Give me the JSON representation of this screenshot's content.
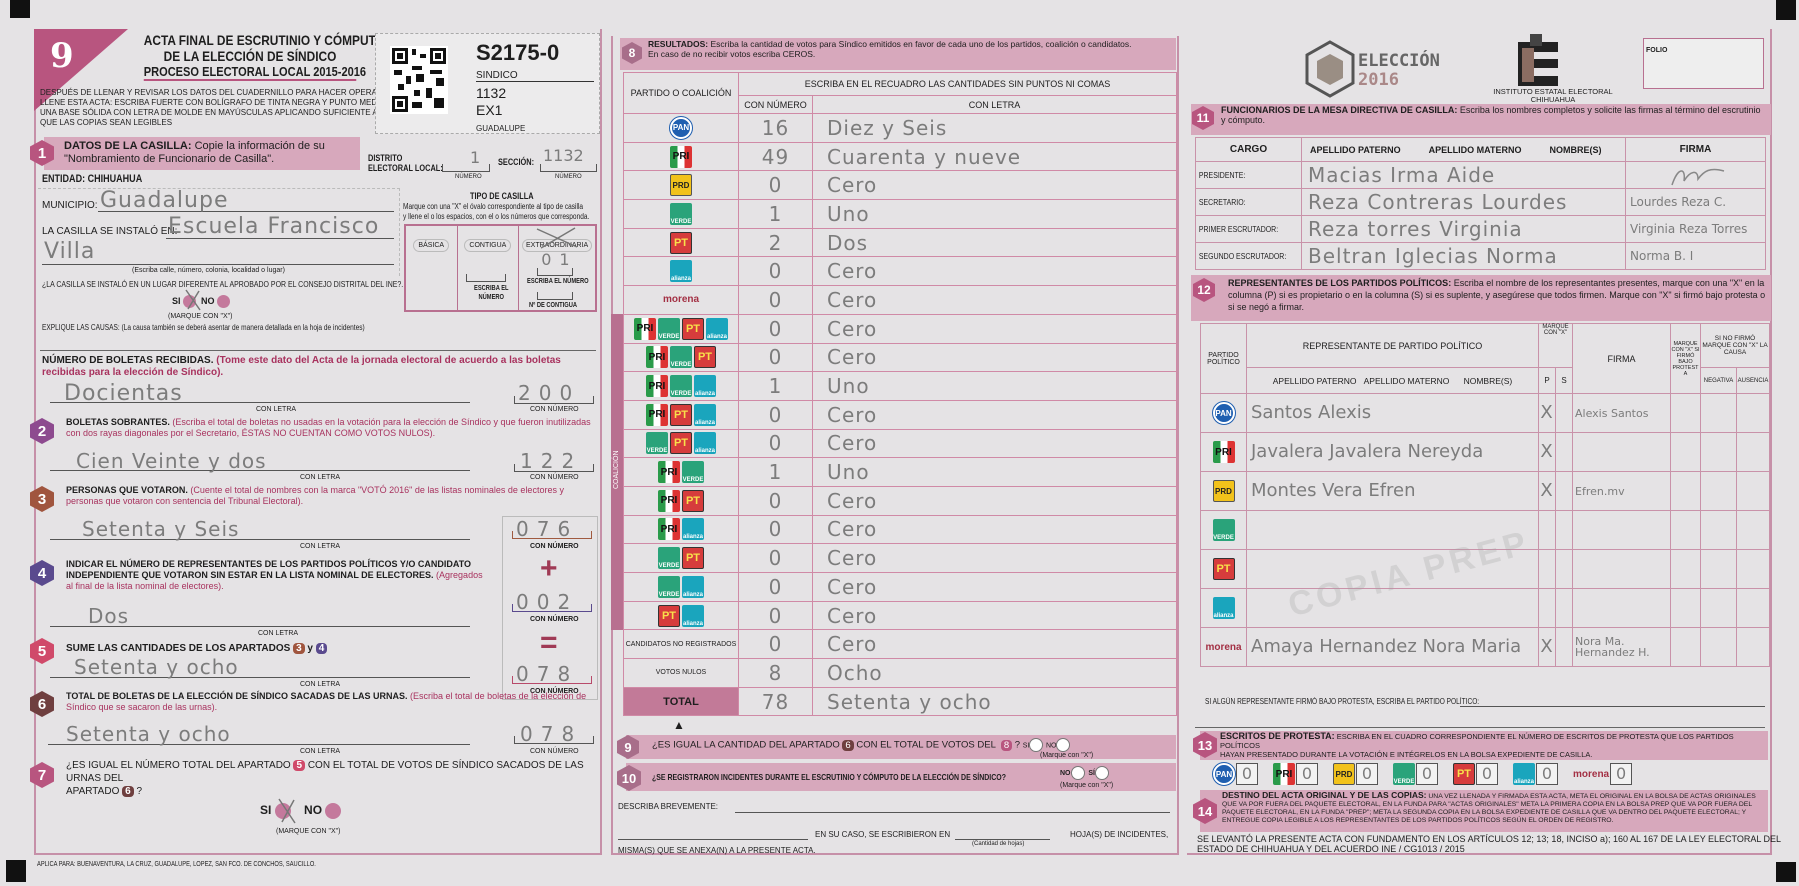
{
  "header": {
    "number": "9",
    "title1": "ACTA FINAL DE ESCRUTINIO Y CÓMPUTO",
    "title2": "DE LA ELECCIÓN DE SÍNDICO",
    "title3": "PROCESO ELECTORAL LOCAL 2015-2016",
    "instructions": [
      "DESPUÉS DE LLENAR Y REVISAR LOS DATOS DEL CUADERNILLO PARA HACER OPERACIONES,",
      "LLENE ESTA ACTA: ESCRIBA FUERTE CON BOLÍGRAFO DE TINTA NEGRA Y PUNTO MEDIANO SOBRE",
      "UNA BASE SÓLIDA CON LETRA DE MOLDE EN MAYÚSCULAS APLICANDO SUFICIENTE APOYO PARA",
      "QUE LAS COPIAS SEAN LEGIBLES"
    ]
  },
  "id_box": {
    "code": "S2175-0",
    "election": "SINDICO",
    "section": "1132",
    "casilla": "EX1",
    "municipio": "GUADALUPE"
  },
  "s1": {
    "num": "1",
    "title": "DATOS DE LA CASILLA:",
    "text1": "Copie la información de su",
    "text2": "\"Nombramiento de Funcionario de Casilla\".",
    "distrito_label1": "DISTRITO",
    "distrito_label2": "ELECTORAL LOCAL:",
    "distrito_value": "1",
    "seccion_label": "SECCIÓN:",
    "seccion_value": "1132",
    "numero": "NÚMERO",
    "entidad": "ENTIDAD:  CHIHUAHUA",
    "municipio_label": "MUNICIPIO:",
    "municipio_value": "Guadalupe",
    "instalo_label": "LA CASILLA SE INSTALÓ EN:",
    "instalo_value1": "Escuela Francisco",
    "instalo_value2": "Villa",
    "address_hint": "(Escriba calle, número, colonia, localidad o lugar)",
    "diferente_q": "¿LA CASILLA SE INSTALÓ EN UN LUGAR DIFERENTE AL APROBADO POR EL CONSEJO DISTRITAL DEL INE?.",
    "si": "SI",
    "no": "NO",
    "marque": "(MARQUE CON \"X\")",
    "selected": "SI",
    "explique": "EXPLIQUE LAS CAUSAS:",
    "explique_hint": "(La causa también se deberá asentar de manera detallada en la hoja de incidentes)",
    "tipo_title": "TIPO DE CASILLA",
    "tipo_desc1": "Marque con una \"X\" el óvalo correspondiente al tipo de casilla",
    "tipo_desc2": "y llene el o los espacios, con el o los números que corresponda.",
    "tipos": [
      "BÁSICA",
      "CONTIGUA",
      "EXTRAORDINARIA"
    ],
    "tipo_selected": "EXTRAORDINARIA",
    "escriba_numero": "ESCRIBA EL NÚMERO",
    "escriba_el": "ESCRIBA EL",
    "numero2": "NÚMERO",
    "extra_value": "01",
    "contigua_label": "Nº DE CONTIGUA"
  },
  "con_letra": "CON LETRA",
  "con_numero": "CON NÚMERO",
  "boletas": {
    "title": "NÚMERO DE BOLETAS RECIBIDAS.",
    "hint1": "(Tome este dato del Acta de la jornada electoral de acuerdo a las boletas recibidas para la",
    "hint2": "elección de Síndico).",
    "letra": "Docientas",
    "numero": "200"
  },
  "s2": {
    "num": "2",
    "title": "BOLETAS SOBRANTES.",
    "hint1": "(Escriba el total de boletas no usadas en la votación para la elección de Síndico y que fueron inutilizadas",
    "hint2": "con dos rayas diagonales por el Secretario, ÉSTAS NO CUENTAN COMO VOTOS NULOS).",
    "letra": "Cien Veinte y dos",
    "numero": "122"
  },
  "s3": {
    "num": "3",
    "title": "PERSONAS QUE VOTARON.",
    "hint1": "(Cuente el total de nombres con la marca \"VOTÓ 2016\" de las listas nominales de electores y",
    "hint2": "personas que votaron con sentencia del Tribunal Electoral).",
    "letra": "Setenta y Seis",
    "numero": "076"
  },
  "s4": {
    "num": "4",
    "title1": "INDICAR EL NÚMERO DE REPRESENTANTES DE LOS PARTIDOS POLÍTICOS Y/O CANDIDATO",
    "title2": "INDEPENDIENTE QUE VOTARON SIN ESTAR EN LA LISTA NOMINAL DE ELECTORES.",
    "hint1": "(Agregados al",
    "hint2": "final de la lista nominal de electores).",
    "letra": "Dos",
    "numero": "002",
    "plus": "+",
    "equals": "="
  },
  "s5": {
    "num": "5",
    "title": "SUME LAS CANTIDADES DE LOS APARTADOS",
    "ref_a": "3",
    "y": "y",
    "ref_b": "4",
    "letra": "Setenta y ocho",
    "numero": "078"
  },
  "s6": {
    "num": "6",
    "title": "TOTAL DE BOLETAS DE LA ELECCIÓN DE SÍNDICO SACADAS DE LAS URNAS.",
    "hint1": "(Escriba el total de boletas de la elección de",
    "hint2": "Síndico que se sacaron de las urnas).",
    "letra": "Setenta y ocho",
    "numero": "078"
  },
  "s7": {
    "num": "7",
    "text1a": "¿ES IGUAL EL NÚMERO TOTAL DEL APARTADO",
    "ref_a": "5",
    "text1b": "CON EL TOTAL DE VOTOS DE SÍNDICO SACADOS DE LAS URNAS DEL",
    "text2": "APARTADO",
    "ref_b": "6",
    "q": "?",
    "si": "SI",
    "no": "NO",
    "marque": "(MARQUE CON \"X\")",
    "selected": "SI"
  },
  "footer_left": "APLICA PARA:  BUENAVENTURA, LA CRUZ, GUADALUPE, LOPEZ, SAN FCO. DE CONCHOS, SAUCILLO.",
  "parties": {
    "pan": "PAN",
    "pri": "PRI",
    "prd": "PRD",
    "verde": "VERDE",
    "pt": "PT",
    "alianza": "alianza",
    "morena": "morena"
  },
  "s8": {
    "num": "8",
    "title": "RESULTADOS:",
    "text1": "Escriba la cantidad de votos para Síndico emitidos en favor de cada uno de los partidos, coalición o candidatos.",
    "text2": "En caso de no recibir votos escriba CEROS.",
    "col_party": "PARTIDO O COALICIÓN",
    "col_instr": "ESCRIBA EN EL RECUADRO LAS CANTIDADES SIN PUNTOS NI COMAS",
    "col_num": "CON NÚMERO",
    "col_letra": "CON LETRA",
    "coalicion": "COALICIÓN",
    "rows": [
      {
        "parties": [
          "pan"
        ],
        "numero": "16",
        "letra": "Diez y Seis"
      },
      {
        "parties": [
          "pri"
        ],
        "numero": "49",
        "letra": "Cuarenta y nueve"
      },
      {
        "parties": [
          "prd"
        ],
        "numero": "0",
        "letra": "Cero"
      },
      {
        "parties": [
          "verde"
        ],
        "numero": "1",
        "letra": "Uno"
      },
      {
        "parties": [
          "pt"
        ],
        "numero": "2",
        "letra": "Dos"
      },
      {
        "parties": [
          "alianza"
        ],
        "numero": "0",
        "letra": "Cero"
      },
      {
        "parties": [
          "morena"
        ],
        "numero": "0",
        "letra": "Cero"
      },
      {
        "parties": [
          "pri",
          "verde",
          "pt",
          "alianza"
        ],
        "numero": "0",
        "letra": "Cero",
        "coalition": true
      },
      {
        "parties": [
          "pri",
          "verde",
          "pt"
        ],
        "numero": "0",
        "letra": "Cero",
        "coalition": true
      },
      {
        "parties": [
          "pri",
          "verde",
          "alianza"
        ],
        "numero": "1",
        "letra": "Uno",
        "coalition": true
      },
      {
        "parties": [
          "pri",
          "pt",
          "alianza"
        ],
        "numero": "0",
        "letra": "Cero",
        "coalition": true
      },
      {
        "parties": [
          "verde",
          "pt",
          "alianza"
        ],
        "numero": "0",
        "letra": "Cero",
        "coalition": true
      },
      {
        "parties": [
          "pri",
          "verde"
        ],
        "numero": "1",
        "letra": "Uno",
        "coalition": true
      },
      {
        "parties": [
          "pri",
          "pt"
        ],
        "numero": "0",
        "letra": "Cero",
        "coalition": true
      },
      {
        "parties": [
          "pri",
          "alianza"
        ],
        "numero": "0",
        "letra": "Cero",
        "coalition": true
      },
      {
        "parties": [
          "verde",
          "pt"
        ],
        "numero": "0",
        "letra": "Cero",
        "coalition": true
      },
      {
        "parties": [
          "verde",
          "alianza"
        ],
        "numero": "0",
        "letra": "Cero",
        "coalition": true
      },
      {
        "parties": [
          "pt",
          "alianza"
        ],
        "numero": "0",
        "letra": "Cero",
        "coalition": true
      },
      {
        "label": "CANDIDATOS NO REGISTRADOS",
        "numero": "0",
        "letra": "Cero"
      },
      {
        "label": "VOTOS NULOS",
        "numero": "8",
        "letra": "Ocho"
      },
      {
        "label": "TOTAL",
        "numero": "78",
        "letra": "Setenta y ocho",
        "total": true
      }
    ]
  },
  "s9": {
    "num": "9",
    "text_a": "¿ES IGUAL LA CANTIDAD DEL APARTADO",
    "ref_a": "6",
    "text_b": "CON EL TOTAL DE VOTOS DEL",
    "ref_b": "8",
    "q": "?",
    "si": "SI",
    "no": "NO",
    "marque": "(Marque con \"X\")"
  },
  "s10": {
    "num": "10",
    "text": "¿SE REGISTRARON INCIDENTES DURANTE EL ESCRUTINIO Y CÓMPUTO DE LA ELECCIÓN DE SÍNDICO?",
    "no": "NO",
    "si": "SÍ",
    "marque": "(Marque con \"X\")",
    "describa": "DESCRIBA BREVEMENTE:",
    "en_su_caso": "EN SU CASO, SE ESCRIBIERON EN",
    "hojas": "HOJA(S) DE INCIDENTES,",
    "cantidad": "(Cantidad de hojas)",
    "misma": "MISMA(S) QUE SE ANEXA(N) A LA PRESENTE ACTA."
  },
  "logos": {
    "eleccion1": "ELECCIÓN",
    "eleccion2": "2016",
    "iee1": "INSTITUTO ESTATAL ELECTORAL",
    "iee2": "CHIHUAHUA",
    "folio": "FOLIO"
  },
  "s11": {
    "num": "11",
    "title": "FUNCIONARIOS DE LA MESA DIRECTIVA DE CASILLA:",
    "text1": "Escriba los nombres completos y solicite las firmas al término del escrutinio",
    "text2": "y cómputo.",
    "cols": [
      "CARGO",
      "APELLIDO PATERNO",
      "APELLIDO MATERNO",
      "NOMBRE(S)",
      "FIRMA"
    ],
    "rows": [
      {
        "cargo": "PRESIDENTE:",
        "nombre": "Macias Irma Aide",
        "firma": ""
      },
      {
        "cargo": "SECRETARIO:",
        "nombre": "Reza Contreras Lourdes",
        "firma": "Lourdes Reza C."
      },
      {
        "cargo": "PRIMER ESCRUTADOR:",
        "nombre": "Reza torres Virginia",
        "firma": "Virginia Reza Torres"
      },
      {
        "cargo": "SEGUNDO ESCRUTADOR:",
        "nombre": "Beltran Iglecias Norma",
        "firma": "Norma B. I"
      }
    ]
  },
  "s12": {
    "num": "12",
    "title": "REPRESENTANTES DE LOS PARTIDOS POLÍTICOS:",
    "text1": "Escriba el nombre de los representantes presentes, marque con una \"X\" en",
    "text2": "la columna (P) si es propietario o en la columna (S) si es suplente, y asegúrese que todos firmen. Marque con \"X\" si firmó bajo",
    "text3": "protesta o si se negó a firmar.",
    "col_partido": "PARTIDO POLÍTICO",
    "col_rep": "REPRESENTANTE DE PARTIDO POLÍTICO",
    "col_marque": "MARQUE CON \"X\"",
    "col_firma": "FIRMA",
    "col_protesta": "MARQUE CON \"X\" SI FIRMÓ BAJO PROTESTA",
    "col_nofirmo": "SI NO FIRMÓ MARQUE CON \"X\" LA CAUSA",
    "col_pat": "APELLIDO PATERNO",
    "col_mat": "APELLIDO MATERNO",
    "col_nom": "NOMBRE(S)",
    "col_p": "P",
    "col_s": "S",
    "col_neg": "NEGATIVA",
    "col_aus": "AUSENCIA",
    "rows": [
      {
        "party": "pan",
        "nombre": "Santos Alexis",
        "p": "X",
        "s": "",
        "firma": "Alexis Santos"
      },
      {
        "party": "pri",
        "nombre": "Javalera Javalera Nereyda",
        "p": "X",
        "s": "",
        "firma": ""
      },
      {
        "party": "prd",
        "nombre": "Montes Vera Efren",
        "p": "X",
        "s": "",
        "firma": "Efren.mv"
      },
      {
        "party": "verde",
        "nombre": "",
        "p": "",
        "s": "",
        "firma": ""
      },
      {
        "party": "pt",
        "nombre": "",
        "p": "",
        "s": "",
        "firma": ""
      },
      {
        "party": "alianza",
        "nombre": "",
        "p": "",
        "s": "",
        "firma": ""
      },
      {
        "party": "morena",
        "nombre": "Amaya Hernandez Nora Maria",
        "p": "X",
        "s": "",
        "firma": "Nora Ma. Hernandez H."
      }
    ],
    "protesta_q": "SI ALGÚN REPRESENTANTE FIRMÓ BAJO PROTESTA, ESCRIBA EL PARTIDO POLÍTICO:"
  },
  "s13": {
    "num": "13",
    "title": "ESCRITOS DE PROTESTA:",
    "text1": "ESCRIBA EN EL CUADRO CORRESPONDIENTE EL NÚMERO DE ESCRITOS DE PROTESTA QUE LOS PARTIDOS POLÍTICOS",
    "text2": "HAYAN PRESENTADO DURANTE LA VOTACIÓN E INTÉGRELOS EN LA BOLSA  EXPEDIENTE DE CASILLA.",
    "parties": [
      "pan",
      "pri",
      "prd",
      "verde",
      "pt",
      "alianza",
      "morena"
    ],
    "values": [
      "0",
      "0",
      "0",
      "0",
      "0",
      "0",
      "0"
    ]
  },
  "s14": {
    "num": "14",
    "title": "DESTINO DEL ACTA ORIGINAL Y DE LAS COPIAS:",
    "text1": "UNA VEZ LLENADA Y FIRMADA ESTA ACTA, META EL ORIGINAL EN LA BOLSA DE ACTAS ORIGINALES QUE VA",
    "text2": "POR FUERA DEL PAQUETE ELECTORAL, EN LA FUNDA PARA \"ACTAS ORIGINALES\" META LA PRIMERA COPIA EN LA BOLSA PREP QUE VA POR FUERA DEL PAQUETE ELECTORAL, EN LA",
    "text3": "FUNDA \"PREP\"; META LA SEGUNDA COPIA EN LA BOLSA EXPEDIENTE DE CASILLA QUE VA DENTRO DEL PAQUETE ELECTORAL; Y ENTREGUE COPIA LEGIBLE A LOS REPRESENTANTES",
    "text4": "DE LOS PARTIDOS POLÍTICOS SEGÚN EL ORDEN DE REGISTRO.",
    "legal1": "SE LEVANTÓ LA PRESENTE ACTA CON FUNDAMENTO EN LOS ARTÍCULOS 12; 13; 18, INCISO a); 160 AL 167 DE LA LEY  ELECTORAL DEL",
    "legal2": "ESTADO DE CHIHUAHUA Y DEL ACUERDO INE / CG1013 / 2015"
  },
  "watermark": "COPIA PREP",
  "colors": {
    "accent": "#b8557f",
    "band": "#d7a8bc",
    "border": "#c690a8",
    "handwriting": "#7c7c7c"
  }
}
